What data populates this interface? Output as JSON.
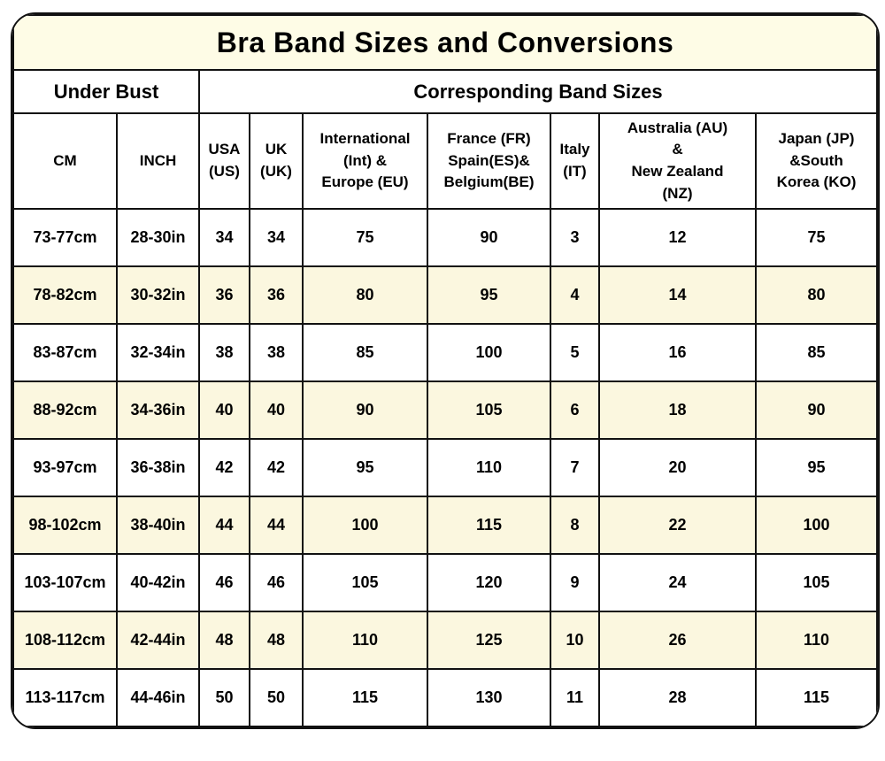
{
  "title": "Bra Band Sizes and Conversions",
  "group_headers": {
    "under_bust": "Under Bust",
    "band_sizes": "Corresponding Band Sizes"
  },
  "columns_display": [
    "CM",
    "INCH",
    "USA\n(US)",
    "UK\n(UK)",
    "International\n(Int) &\nEurope (EU)",
    "France (FR)\nSpain(ES)&\nBelgium(BE)",
    "Italy\n(IT)",
    "Australia (AU)\n&\nNew Zealand\n(NZ)",
    "Japan (JP)\n&South\nKorea (KO)"
  ],
  "colors": {
    "title_bg": "#FEFCE6",
    "alt_row_bg": "#FBF7DF",
    "border": "#111111",
    "text": "#000000"
  },
  "chart_data": {
    "type": "table",
    "title": "Bra Band Sizes and Conversions",
    "column_groups": [
      {
        "label": "Under Bust",
        "span": 2
      },
      {
        "label": "Corresponding Band Sizes",
        "span": 7
      }
    ],
    "columns": [
      "CM",
      "INCH",
      "USA (US)",
      "UK (UK)",
      "International (Int) & Europe (EU)",
      "France (FR) Spain(ES)& Belgium(BE)",
      "Italy (IT)",
      "Australia (AU) & New Zealand (NZ)",
      "Japan (JP) &South Korea (KO)"
    ],
    "rows": [
      [
        "73-77cm",
        "28-30in",
        "34",
        "34",
        "75",
        "90",
        "3",
        "12",
        "75"
      ],
      [
        "78-82cm",
        "30-32in",
        "36",
        "36",
        "80",
        "95",
        "4",
        "14",
        "80"
      ],
      [
        "83-87cm",
        "32-34in",
        "38",
        "38",
        "85",
        "100",
        "5",
        "16",
        "85"
      ],
      [
        "88-92cm",
        "34-36in",
        "40",
        "40",
        "90",
        "105",
        "6",
        "18",
        "90"
      ],
      [
        "93-97cm",
        "36-38in",
        "42",
        "42",
        "95",
        "110",
        "7",
        "20",
        "95"
      ],
      [
        "98-102cm",
        "38-40in",
        "44",
        "44",
        "100",
        "115",
        "8",
        "22",
        "100"
      ],
      [
        "103-107cm",
        "40-42in",
        "46",
        "46",
        "105",
        "120",
        "9",
        "24",
        "105"
      ],
      [
        "108-112cm",
        "42-44in",
        "48",
        "48",
        "110",
        "125",
        "10",
        "26",
        "110"
      ],
      [
        "113-117cm",
        "44-46in",
        "50",
        "50",
        "115",
        "130",
        "11",
        "28",
        "115"
      ]
    ]
  }
}
